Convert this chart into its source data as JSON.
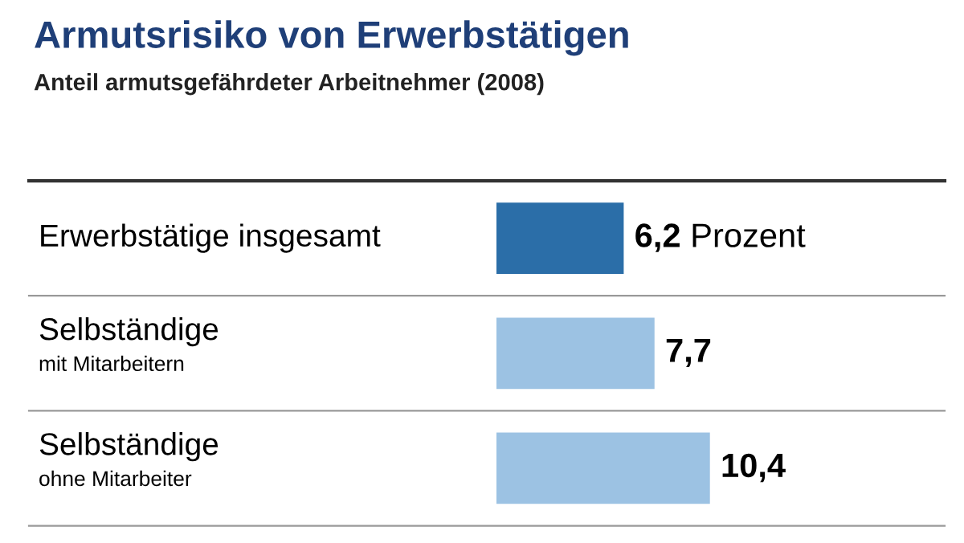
{
  "chart_data": {
    "type": "bar",
    "orientation": "horizontal",
    "title": "Armutsrisiko von Erwerbstätigen",
    "subtitle": "Anteil armutsgefährdeter Arbeitnehmer (2008)",
    "categories": [
      "Erwerbstätige insgesamt",
      "Selbständige\nmit Mitarbeitern",
      "Selbständige\nohne Mitarbeiter"
    ],
    "values": [
      6.2,
      7.7,
      10.4
    ],
    "colors": [
      "#2b6ea8",
      "#9cc2e3",
      "#9cc2e3"
    ],
    "value_labels": [
      "6,2 Prozent",
      "7,7",
      "10,4"
    ]
  }
}
